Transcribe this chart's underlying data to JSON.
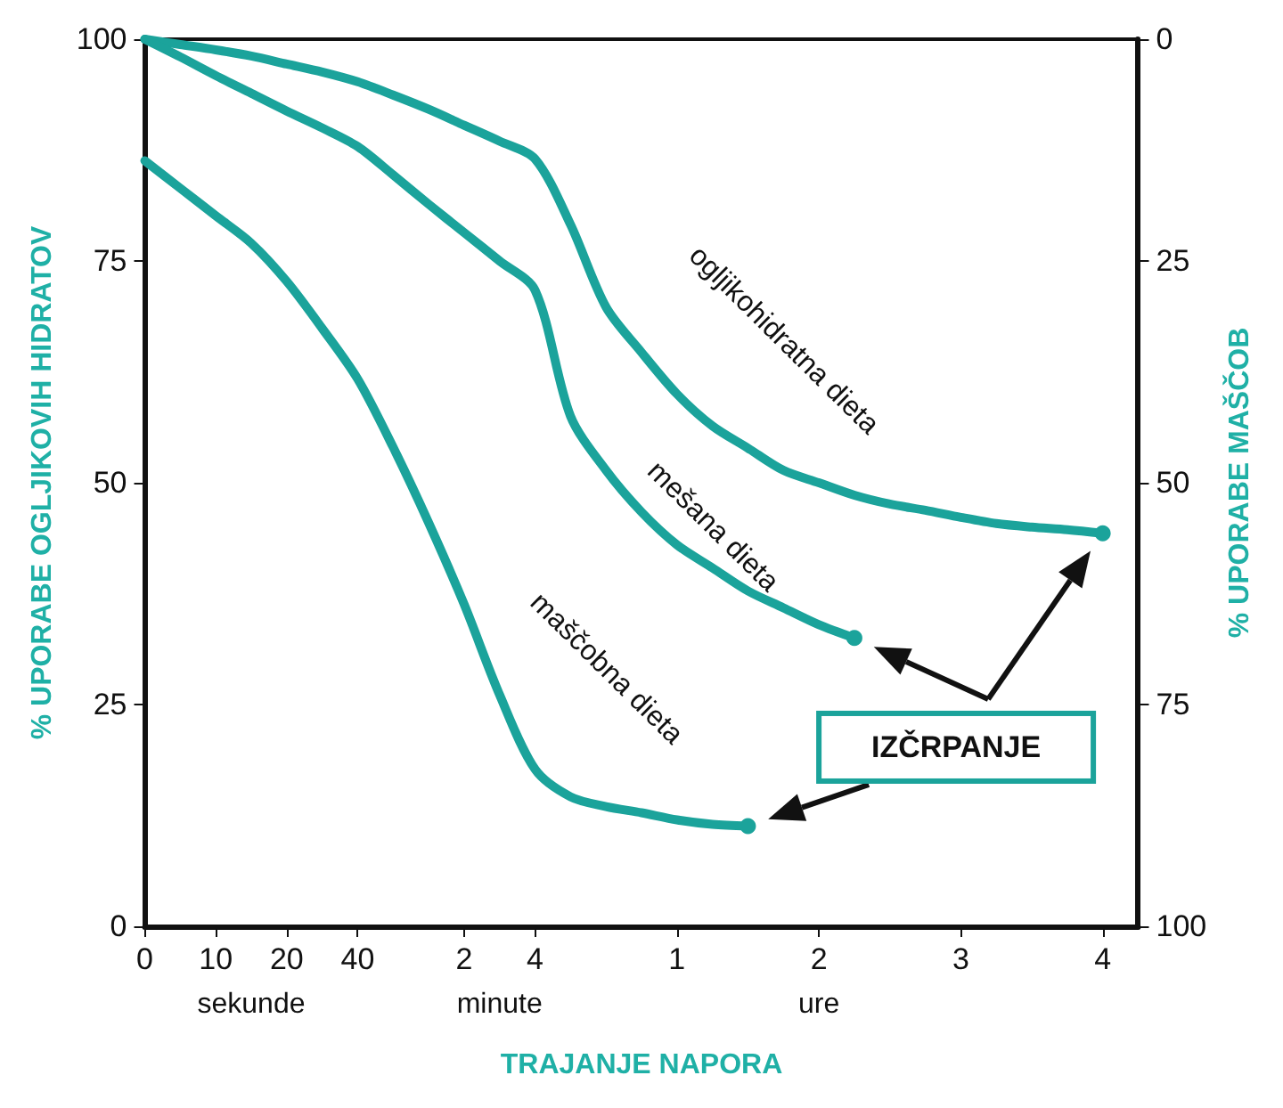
{
  "chart_data": {
    "type": "line",
    "xlabel": "TRAJANJE NAPORA",
    "ylabel": "% UPORABE OGLJIKOVIH HIDRATOV",
    "y2label": "% UPORABE MAŠČOB",
    "categories": [
      "0",
      null,
      "10",
      null,
      "20",
      null,
      "40",
      null,
      null,
      "2",
      null,
      "4",
      null,
      null,
      null,
      "1",
      null,
      null,
      null,
      "2",
      null,
      null,
      null,
      "3",
      null,
      null,
      null,
      "4",
      null
    ],
    "ylim": [
      0,
      100
    ],
    "yticks": [
      0,
      25,
      50,
      75,
      100
    ],
    "y2lim": [
      100,
      0
    ],
    "y2ticks": [
      0,
      25,
      50,
      75,
      100
    ],
    "grid": false,
    "legend": false,
    "line_style": "solid",
    "series": [
      {
        "name": "ogljikohidratna dieta",
        "color": "#1ba39b",
        "values": [
          100,
          99.4,
          98.8,
          98.1,
          97.2,
          96.3,
          95.2,
          93.7,
          92.1,
          90.3,
          88.5,
          86.5,
          79.1,
          69.8,
          64.7,
          60.0,
          56.4,
          53.9,
          51.4,
          50.0,
          48.6,
          47.6,
          46.9,
          46.1,
          45.4,
          45.0,
          44.7,
          44.3,
          null
        ]
      },
      {
        "name": "mešana dieta",
        "color": "#1ba39b",
        "values": [
          100,
          98.0,
          95.9,
          93.9,
          91.9,
          90.0,
          87.9,
          84.7,
          81.4,
          78.2,
          75.0,
          71.7,
          57.5,
          51.4,
          46.7,
          43.0,
          40.4,
          37.8,
          35.9,
          34.0,
          32.5,
          null,
          null,
          null,
          null,
          null,
          null,
          null,
          null
        ]
      },
      {
        "name": "maščobna dieta",
        "color": "#1ba39b",
        "values": [
          86.3,
          83.2,
          80.1,
          77.0,
          72.7,
          67.4,
          61.7,
          54.0,
          45.5,
          36.3,
          26.1,
          17.7,
          14.6,
          13.5,
          12.8,
          12.0,
          11.5,
          11.3,
          null,
          null,
          null,
          null,
          null,
          null,
          null,
          null,
          null,
          null,
          null
        ]
      }
    ],
    "annotations": [
      "sekunde",
      "minute",
      "ure",
      "IZČRPANJE"
    ]
  }
}
